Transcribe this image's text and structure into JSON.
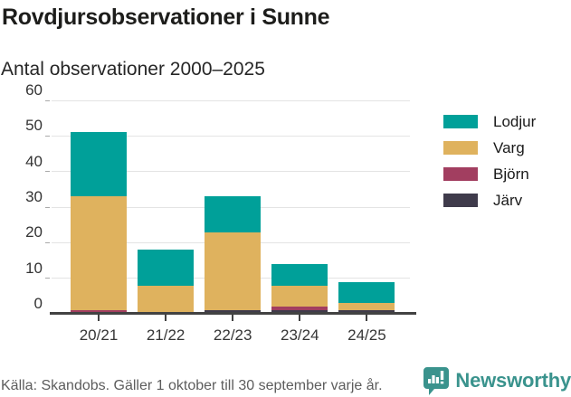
{
  "header": {
    "title": "Rovdjursobservationer i Sunne",
    "subtitle": "Antal observationer 2000–2025"
  },
  "chart_data": {
    "type": "bar",
    "stacked": true,
    "title": "Rovdjursobservationer i Sunne",
    "subtitle": "Antal observationer 2000–2025",
    "categories": [
      "20/21",
      "21/22",
      "22/23",
      "23/24",
      "24/25"
    ],
    "series": [
      {
        "name": "Järv",
        "color": "#3f3b4b",
        "values": [
          0,
          0,
          1,
          1,
          1
        ]
      },
      {
        "name": "Björn",
        "color": "#a23e60",
        "values": [
          1,
          0,
          0,
          1,
          0
        ]
      },
      {
        "name": "Varg",
        "color": "#dfb25e",
        "values": [
          32,
          8,
          22,
          6,
          2
        ]
      },
      {
        "name": "Lodjur",
        "color": "#00a099",
        "values": [
          18,
          10,
          10,
          6,
          6
        ]
      }
    ],
    "totals": [
      51,
      18,
      33,
      14,
      9
    ],
    "xlabel": "",
    "ylabel": "",
    "ylim": [
      0,
      60
    ],
    "yticks": [
      0,
      10,
      20,
      30,
      40,
      50,
      60
    ],
    "grid": true,
    "legend_position": "right"
  },
  "legend": {
    "items": [
      {
        "label": "Lodjur",
        "color": "#00a099"
      },
      {
        "label": "Varg",
        "color": "#dfb25e"
      },
      {
        "label": "Björn",
        "color": "#a23e60"
      },
      {
        "label": "Järv",
        "color": "#3f3b4b"
      }
    ]
  },
  "footer": {
    "source": "Källa: Skandobs. Gäller 1 oktober till 30 september varje år.",
    "brand": "Newsworthy",
    "brand_color": "#3a938d"
  }
}
